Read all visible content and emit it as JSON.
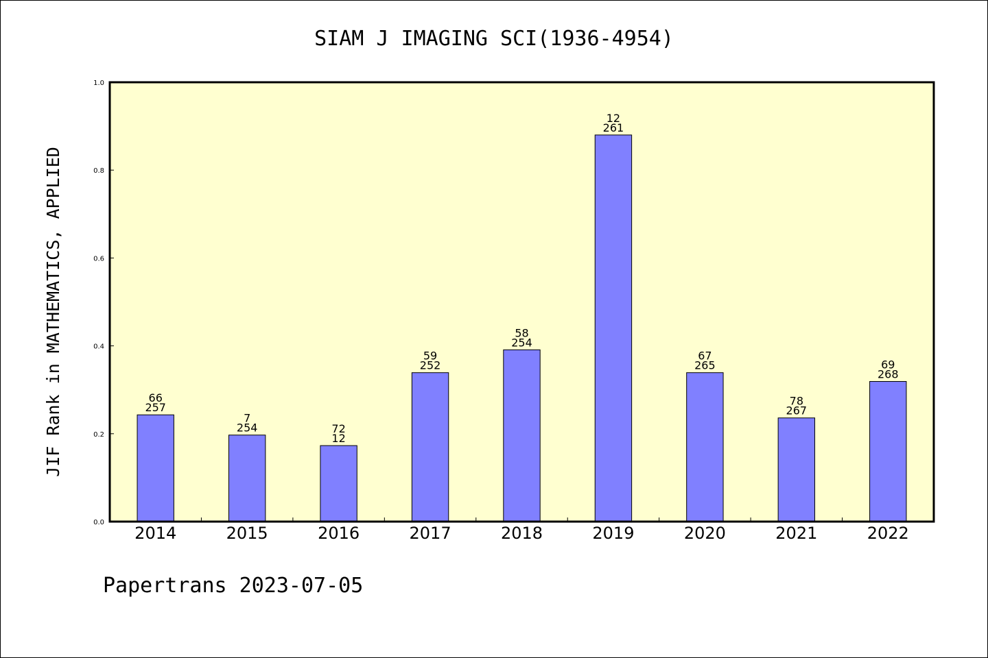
{
  "chart_data": {
    "type": "bar",
    "title": "SIAM J IMAGING SCI(1936-4954)",
    "xlabel": "",
    "ylabel": "JIF Rank in MATHEMATICS, APPLIED",
    "ylim": [
      0,
      1.0
    ],
    "yticks": [
      "0.0",
      "0.2",
      "0.4",
      "0.6",
      "0.8",
      "1.0"
    ],
    "categories": [
      "2014",
      "2015",
      "2016",
      "2017",
      "2018",
      "2019",
      "2020",
      "2021",
      "2022"
    ],
    "values": [
      0.243,
      0.197,
      0.173,
      0.339,
      0.391,
      0.88,
      0.339,
      0.236,
      0.319
    ],
    "bar_labels": [
      {
        "rank": "66",
        "total": "257"
      },
      {
        "rank": "7",
        "total": "254"
      },
      {
        "rank": "72",
        "total": "12"
      },
      {
        "rank": "59",
        "total": "252"
      },
      {
        "rank": "58",
        "total": "254"
      },
      {
        "rank": "12",
        "total": "261"
      },
      {
        "rank": "67",
        "total": "265"
      },
      {
        "rank": "78",
        "total": "267"
      },
      {
        "rank": "69",
        "total": "268"
      }
    ],
    "grid": false,
    "colors": {
      "bar": "#8080ff",
      "plot_background": "#ffffd0",
      "axis": "#000000"
    }
  },
  "footer": "Papertrans 2023-07-05"
}
